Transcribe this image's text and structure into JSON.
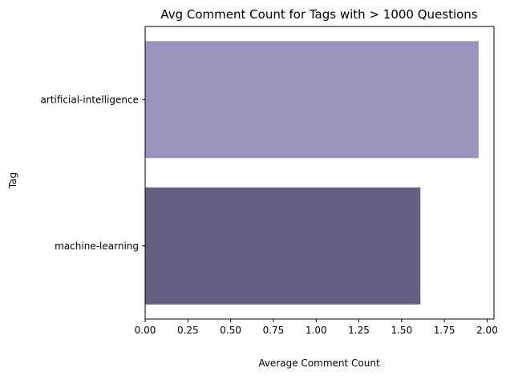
{
  "chart_data": {
    "type": "bar",
    "orientation": "horizontal",
    "title": "Avg Comment Count for Tags with > 1000 Questions",
    "xlabel": "Average Comment Count",
    "ylabel": "Tag",
    "categories": [
      "artificial-intelligence",
      "machine-learning"
    ],
    "values": [
      1.95,
      1.61
    ],
    "bar_colors": [
      "#9894bd",
      "#655f82"
    ],
    "xlim": [
      0,
      2.04
    ],
    "xticks": [
      "0.00",
      "0.25",
      "0.50",
      "0.75",
      "1.00",
      "1.25",
      "1.50",
      "1.75",
      "2.00"
    ],
    "grid": false,
    "legend": "none"
  }
}
